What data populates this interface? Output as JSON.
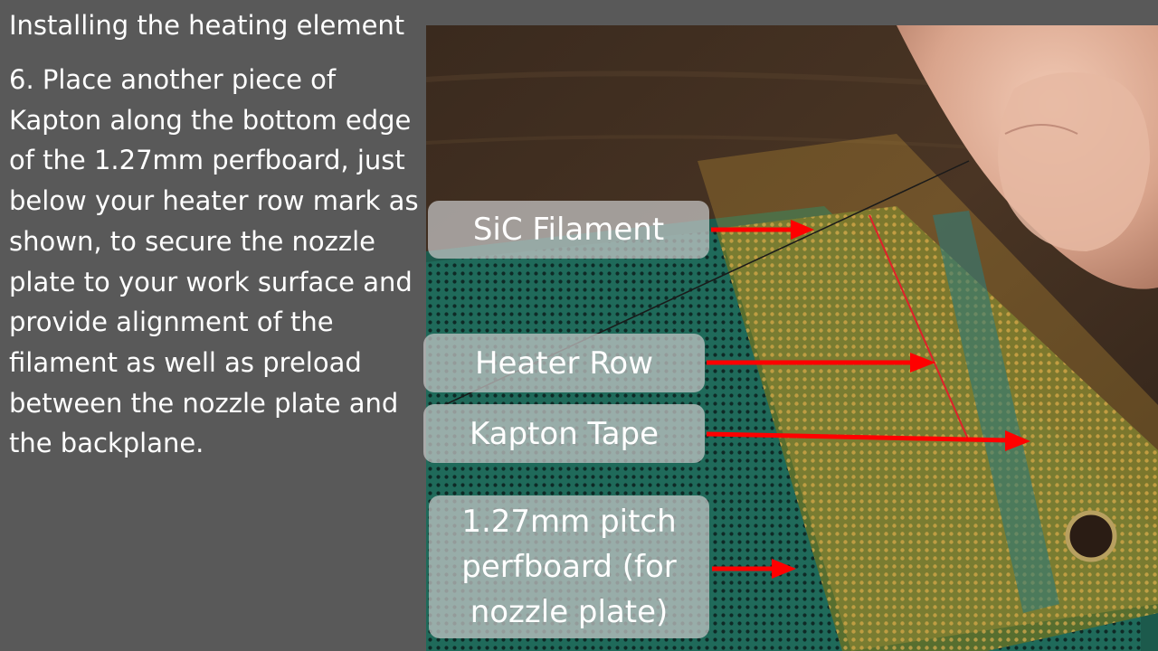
{
  "slide": {
    "title": "Installing the heating element",
    "body": "6. Place another piece of Kapton along the bottom edge of the 1.27mm perfboard, just below your heater row mark as shown, to secure the nozzle plate to your work surface and provide alignment of the filament as well as preload between the nozzle plate and the backplane."
  },
  "callouts": {
    "sic_filament": "SiC Filament",
    "heater_row": "Heater Row",
    "kapton_tape": "Kapton Tape",
    "perfboard": "1.27mm pitch perfboard (for nozzle plate)"
  },
  "colors": {
    "background": "#595959",
    "arrow": "#ff0000",
    "callout_fill": "#c8c8c8",
    "text": "#ffffff"
  }
}
